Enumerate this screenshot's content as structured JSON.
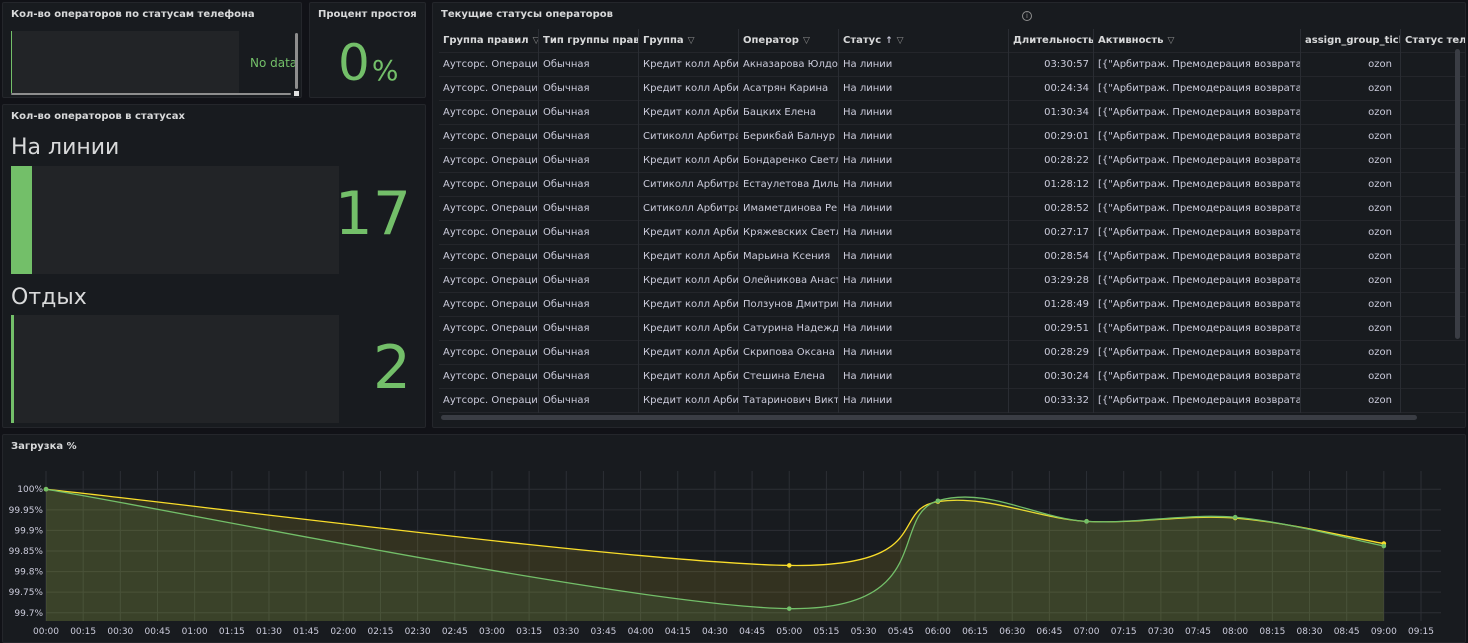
{
  "panels": {
    "phone": {
      "title": "Кол-во операторов по статусам телефона",
      "no_data": "No data"
    },
    "idle": {
      "title": "Процент простоя",
      "value": "0",
      "unit": "%"
    },
    "statuses": {
      "title": "Кол-во операторов в статусах",
      "items": [
        {
          "label": "На линии",
          "value": "17",
          "fraction": 0.065
        },
        {
          "label": "Отдых",
          "value": "2",
          "fraction": 0.008
        }
      ]
    },
    "table": {
      "title": "Текущие статусы операторов",
      "columns": [
        "Группа правил",
        "Тип группы прав",
        "Группа",
        "Оператор",
        "Статус",
        "Длительность",
        "Активность",
        "assign_group_ticl",
        "Статус теле"
      ],
      "sort_indicator": "↑",
      "rows": [
        [
          "Аутсорс. Операцион",
          "Обычная",
          "Кредит колл Арбитр",
          "Акназарова Юлдоз",
          "На линии",
          "03:30:57",
          "[{\"Арбитраж. Премодерация возврата Ozon",
          "ozon"
        ],
        [
          "Аутсорс. Операцион",
          "Обычная",
          "Кредит колл Арбитр",
          "Асатрян Карина",
          "На линии",
          "00:24:34",
          "[{\"Арбитраж. Премодерация возврата Ozon",
          "ozon"
        ],
        [
          "Аутсорс. Операцион",
          "Обычная",
          "Кредит колл Арбитр",
          "Бацких Елена",
          "На линии",
          "01:30:34",
          "[{\"Арбитраж. Премодерация возврата Ozon",
          "ozon"
        ],
        [
          "Аутсорс. Операцион",
          "Обычная",
          "Ситиколл Арбитраж",
          "Берикбай Балнур",
          "На линии",
          "00:29:01",
          "[{\"Арбитраж. Премодерация возврата Ozon",
          "ozon"
        ],
        [
          "Аутсорс. Операцион",
          "Обычная",
          "Кредит колл Арбитр",
          "Бондаренко Светлан",
          "На линии",
          "00:28:22",
          "[{\"Арбитраж. Премодерация возврата Ozon",
          "ozon"
        ],
        [
          "Аутсорс. Операцион",
          "Обычная",
          "Ситиколл Арбитраж",
          "Естаулетова Дильна",
          "На линии",
          "01:28:12",
          "[{\"Арбитраж. Премодерация возврата Ozon",
          "ozon"
        ],
        [
          "Аутсорс. Операцион",
          "Обычная",
          "Ситиколл Арбитраж",
          "Имаметдинова Реги",
          "На линии",
          "00:28:52",
          "[{\"Арбитраж. Премодерация возврата Ozon",
          "ozon"
        ],
        [
          "Аутсорс. Операцион",
          "Обычная",
          "Кредит колл Арбитр",
          "Кряжевских Светлан",
          "На линии",
          "00:27:17",
          "[{\"Арбитраж. Премодерация возврата Ozon",
          "ozon"
        ],
        [
          "Аутсорс. Операцион",
          "Обычная",
          "Кредит колл Арбитр",
          "Марьина Ксения",
          "На линии",
          "00:28:54",
          "[{\"Арбитраж. Премодерация возврата Ozon",
          "ozon"
        ],
        [
          "Аутсорс. Операцион",
          "Обычная",
          "Кредит колл Арбитр",
          "Олейникова Анастас",
          "На линии",
          "03:29:28",
          "[{\"Арбитраж. Премодерация возврата Ozon",
          "ozon"
        ],
        [
          "Аутсорс. Операцион",
          "Обычная",
          "Кредит колл Арбитр",
          "Ползунов Дмитрий",
          "На линии",
          "01:28:49",
          "[{\"Арбитраж. Премодерация возврата Ozon",
          "ozon"
        ],
        [
          "Аутсорс. Операцион",
          "Обычная",
          "Кредит колл Арбитр",
          "Сатурина Надежда",
          "На линии",
          "00:29:51",
          "[{\"Арбитраж. Премодерация возврата Ozon",
          "ozon"
        ],
        [
          "Аутсорс. Операцион",
          "Обычная",
          "Кредит колл Арбитр",
          "Скрипова Оксана",
          "На линии",
          "00:28:29",
          "[{\"Арбитраж. Премодерация возврата Ozon",
          "ozon"
        ],
        [
          "Аутсорс. Операцион",
          "Обычная",
          "Кредит колл Арбитр",
          "Стешина Елена",
          "На линии",
          "00:30:24",
          "[{\"Арбитраж. Премодерация возврата Ozon",
          "ozon"
        ],
        [
          "Аутсорс. Операцион",
          "Обычная",
          "Кредит колл Арбитр",
          "Татаринович Виктор",
          "На линии",
          "00:33:32",
          "[{\"Арбитраж. Премодерация возврата Ozon",
          "ozon"
        ]
      ]
    },
    "load": {
      "title": "Загрузка %"
    }
  },
  "colors": {
    "green": "#73bf69",
    "yellow": "#fade2a",
    "panel_bg": "#181b1f"
  },
  "chart_data": {
    "type": "line",
    "title": "Загрузка %",
    "x_ticks": [
      "00:00",
      "00:15",
      "00:30",
      "00:45",
      "01:00",
      "01:15",
      "01:30",
      "01:45",
      "02:00",
      "02:15",
      "02:30",
      "02:45",
      "03:00",
      "03:15",
      "03:30",
      "03:45",
      "04:00",
      "04:15",
      "04:30",
      "04:45",
      "05:00",
      "05:15",
      "05:30",
      "05:45",
      "06:00",
      "06:15",
      "06:30",
      "06:45",
      "07:00",
      "07:15",
      "07:30",
      "07:45",
      "08:00",
      "08:15",
      "08:30",
      "08:45",
      "09:00",
      "09:15"
    ],
    "y_ticks": [
      "100%",
      "99.95%",
      "99.9%",
      "99.85%",
      "99.8%",
      "99.75%",
      "99.7%"
    ],
    "ylim": [
      99.68,
      100.02
    ],
    "series": [
      {
        "color": "#fade2a",
        "x": [
          "00:00",
          "05:00",
          "06:00",
          "07:00",
          "08:00",
          "09:00"
        ],
        "values": [
          100.0,
          99.815,
          99.97,
          99.922,
          99.93,
          99.868
        ]
      },
      {
        "color": "#73bf69",
        "x": [
          "00:00",
          "05:00",
          "06:00",
          "07:00",
          "08:00",
          "09:00"
        ],
        "values": [
          100.0,
          99.71,
          99.972,
          99.922,
          99.932,
          99.862
        ]
      }
    ],
    "grid": true,
    "legend": "none"
  }
}
